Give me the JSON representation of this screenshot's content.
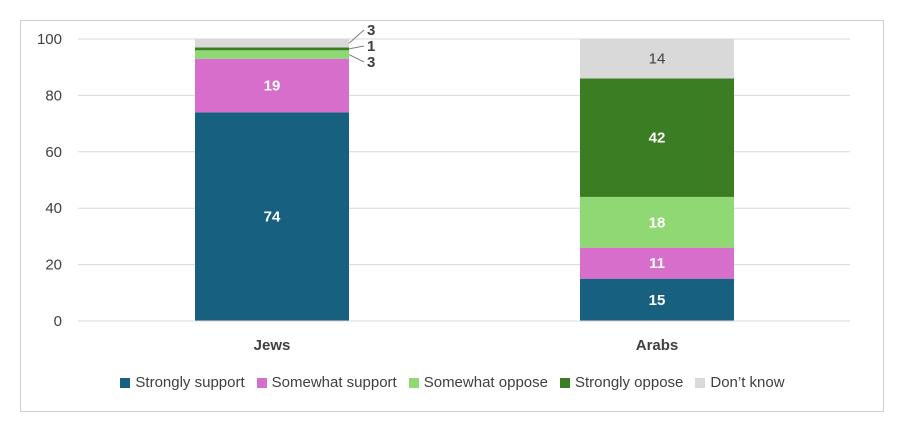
{
  "chart_data": {
    "type": "bar",
    "stacked": true,
    "categories": [
      "Jews",
      "Arabs"
    ],
    "series": [
      {
        "name": "Strongly support",
        "color": "#17607f",
        "label_color": "#ffffff",
        "values": [
          74,
          15
        ]
      },
      {
        "name": "Somewhat support",
        "color": "#d86ecc",
        "label_color": "#ffffff",
        "values": [
          19,
          11
        ]
      },
      {
        "name": "Somewhat oppose",
        "color": "#8fd874",
        "label_color": "#ffffff",
        "values": [
          3,
          18
        ]
      },
      {
        "name": "Strongly oppose",
        "color": "#3a7d22",
        "label_color": "#ffffff",
        "values": [
          1,
          42
        ]
      },
      {
        "name": "Don’t know",
        "color": "#d9d9d9",
        "label_color": "#404040",
        "values": [
          3,
          14
        ]
      }
    ],
    "ylim": [
      0,
      100
    ],
    "yticks": [
      0,
      20,
      40,
      60,
      80,
      100
    ],
    "grid": true,
    "legend": "bottom",
    "title": "",
    "xlabel": "",
    "ylabel": ""
  }
}
